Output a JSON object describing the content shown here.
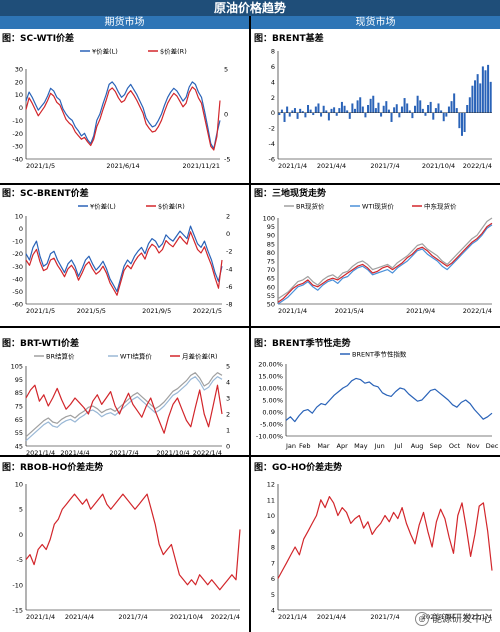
{
  "header": {
    "title": "原油价格趋势",
    "left_section": "期货市场",
    "right_section": "现货市场"
  },
  "watermark": "能源研发中心",
  "colors": {
    "blue": "#2a63b8",
    "red": "#d2262b",
    "gray": "#a0a0a0",
    "lightblue": "#7fa7cf"
  },
  "chart_data": [
    {
      "id": "sc-wti",
      "title": "图：SC-WTI价差",
      "type": "line",
      "legend": [
        "¥价差(L)",
        "$价差(R)"
      ],
      "ylim_left": [
        -40,
        30
      ],
      "yticks_left": [
        "30",
        "20",
        "10",
        "0",
        "-10",
        "-20",
        "-30",
        "-40"
      ],
      "ylim_right": [
        -5,
        5
      ],
      "yticks_right": [
        "5",
        "0",
        "-5"
      ],
      "xticks": [
        "2021/1/5",
        "2021/6/14",
        "2021/11/21"
      ],
      "series": [
        {
          "name": "¥价差(L)",
          "axis": "left",
          "color": "#2a63b8",
          "values": [
            5,
            12,
            8,
            3,
            -2,
            1,
            4,
            9,
            15,
            13,
            8,
            6,
            -1,
            -5,
            -8,
            -10,
            -15,
            -18,
            -22,
            -20,
            -25,
            -28,
            -22,
            -10,
            -5,
            3,
            10,
            18,
            20,
            17,
            12,
            8,
            10,
            15,
            18,
            14,
            10,
            5,
            0,
            -8,
            -12,
            -15,
            -14,
            -10,
            -5,
            2,
            8,
            12,
            15,
            13,
            9,
            5,
            8,
            16,
            20,
            18,
            12,
            8,
            -3,
            -15,
            -28,
            -32,
            -20,
            -10
          ]
        },
        {
          "name": "$价差(R)",
          "axis": "right",
          "color": "#d2262b",
          "values": [
            0.5,
            1.8,
            1.2,
            0.5,
            -0.2,
            0.3,
            0.8,
            1.5,
            2.3,
            2.0,
            1.3,
            1.0,
            0.2,
            -0.6,
            -1.0,
            -1.3,
            -2.0,
            -2.4,
            -2.8,
            -2.6,
            -3.1,
            -3.5,
            -2.8,
            -1.4,
            -0.6,
            0.5,
            1.5,
            2.6,
            2.9,
            2.5,
            1.8,
            1.3,
            1.5,
            2.2,
            2.6,
            2.1,
            1.5,
            0.8,
            0.1,
            -1.1,
            -1.6,
            -2.0,
            -1.9,
            -1.4,
            -0.7,
            0.3,
            1.2,
            1.8,
            2.3,
            2.0,
            1.4,
            0.8,
            1.2,
            2.4,
            3.0,
            2.7,
            1.8,
            1.2,
            -0.4,
            -2.0,
            -3.6,
            -4.0,
            -2.5,
            1.5
          ]
        }
      ]
    },
    {
      "id": "brent-basis",
      "title": "图：BRENT基差",
      "type": "bar",
      "ylim": [
        -6,
        8
      ],
      "yticks": [
        "8",
        "6",
        "4",
        "2",
        "0",
        "-2",
        "-4",
        "-6"
      ],
      "xticks": [
        "2021/1/4",
        "2021/4/4",
        "2021/7/4",
        "2021/10/4",
        "2022/1/4"
      ],
      "series": [
        {
          "name": "",
          "color": "#2a63b8",
          "values": [
            -0.3,
            0.4,
            -1.2,
            0.8,
            -0.5,
            0.3,
            0.6,
            -0.8,
            0.5,
            0.2,
            -0.6,
            1.0,
            0.4,
            -0.3,
            0.8,
            1.2,
            -0.5,
            0.9,
            0.3,
            -1.0,
            0.5,
            0.7,
            -0.4,
            0.6,
            1.4,
            0.9,
            0.3,
            -0.8,
            1.2,
            0.5,
            1.6,
            2.0,
            0.8,
            -0.6,
            1.0,
            1.8,
            2.2,
            0.6,
            1.3,
            -0.5,
            0.9,
            1.5,
            0.4,
            -1.2,
            0.7,
            1.1,
            -0.6,
            0.8,
            1.9,
            1.2,
            0.3,
            -0.7,
            0.9,
            2.2,
            1.6,
            0.5,
            -0.4,
            1.0,
            1.4,
            -0.9,
            0.6,
            1.2,
            0.3,
            -1.1,
            -0.5,
            0.8,
            1.5,
            2.5,
            0.6,
            -2.0,
            -3.0,
            -2.5,
            1.0,
            2.0,
            3.5,
            4.2,
            5.0,
            3.8,
            6.0,
            5.5,
            6.2,
            4.0
          ]
        }
      ]
    },
    {
      "id": "sc-brent",
      "title": "图：SC-BRENT价差",
      "type": "line",
      "legend": [
        "¥价差(L)",
        "$价差(R)"
      ],
      "ylim_left": [
        -60,
        10
      ],
      "yticks_left": [
        "10",
        "0",
        "-10",
        "-20",
        "-30",
        "-40",
        "-50",
        "-60"
      ],
      "ylim_right": [
        -8,
        2
      ],
      "yticks_right": [
        "2",
        "0",
        "-2",
        "-4",
        "-6",
        "-8"
      ],
      "xticks": [
        "2021/1/5",
        "2021/5/5",
        "2021/9/5",
        "2022/1/5"
      ],
      "series": [
        {
          "name": "¥价差(L)",
          "axis": "left",
          "color": "#2a63b8",
          "values": [
            -20,
            -25,
            -15,
            -10,
            -22,
            -30,
            -28,
            -20,
            -18,
            -25,
            -30,
            -35,
            -28,
            -25,
            -30,
            -38,
            -32,
            -25,
            -22,
            -28,
            -33,
            -30,
            -26,
            -32,
            -40,
            -45,
            -50,
            -40,
            -30,
            -25,
            -28,
            -22,
            -18,
            -15,
            -20,
            -12,
            -8,
            -10,
            -15,
            -12,
            -5,
            -8,
            -10,
            -6,
            -2,
            -5,
            -8,
            2,
            -5,
            -12,
            -15,
            -10,
            -18,
            -25,
            -35,
            -42,
            -30
          ]
        },
        {
          "name": "$价差(R)",
          "axis": "right",
          "color": "#d2262b",
          "values": [
            -3.0,
            -3.6,
            -2.4,
            -1.8,
            -3.2,
            -4.2,
            -4.0,
            -3.0,
            -2.8,
            -3.6,
            -4.2,
            -4.9,
            -4.0,
            -3.6,
            -4.2,
            -5.3,
            -4.5,
            -3.6,
            -3.2,
            -4.0,
            -4.6,
            -4.3,
            -3.7,
            -4.5,
            -5.6,
            -6.3,
            -7.0,
            -5.6,
            -4.2,
            -3.6,
            -4.0,
            -3.2,
            -2.6,
            -2.2,
            -2.9,
            -1.8,
            -1.2,
            -1.5,
            -2.2,
            -1.8,
            -0.8,
            -1.2,
            -1.5,
            -0.9,
            -0.3,
            -0.8,
            -1.2,
            0.2,
            -0.8,
            -1.8,
            -2.2,
            -1.5,
            -2.6,
            -3.6,
            -5.0,
            -6.2,
            -3.0
          ]
        }
      ]
    },
    {
      "id": "three-spot",
      "title": "图：三地现货走势",
      "type": "line",
      "legend": [
        "BR现货价",
        "WTI现货价",
        "中东现货价"
      ],
      "ylim": [
        50,
        100
      ],
      "yticks": [
        "100",
        "95",
        "90",
        "85",
        "80",
        "75",
        "70",
        "65",
        "60",
        "55",
        "50"
      ],
      "xticks": [
        "2021/1/4",
        "2021/5/4",
        "2021/9/4",
        "2022/1/4"
      ],
      "series": [
        {
          "name": "BR现货价",
          "color": "#a0a0a0",
          "values": [
            53,
            55,
            57,
            60,
            63,
            64,
            66,
            63,
            61,
            64,
            66,
            67,
            65,
            68,
            69,
            72,
            74,
            75,
            73,
            70,
            71,
            72,
            73,
            71,
            74,
            76,
            78,
            81,
            84,
            85,
            82,
            80,
            78,
            75,
            73,
            76,
            79,
            82,
            85,
            88,
            90,
            94,
            98,
            100
          ]
        },
        {
          "name": "WTI现货价",
          "color": "#4a90d9",
          "values": [
            50,
            52,
            54,
            57,
            60,
            61,
            63,
            60,
            58,
            61,
            63,
            64,
            62,
            65,
            66,
            69,
            71,
            72,
            70,
            67,
            68,
            69,
            70,
            68,
            71,
            73,
            75,
            78,
            81,
            82,
            79,
            77,
            75,
            72,
            70,
            73,
            76,
            79,
            82,
            85,
            87,
            90,
            94,
            96
          ]
        },
        {
          "name": "中东现货价",
          "color": "#d2262b",
          "values": [
            51,
            53,
            56,
            59,
            61,
            62,
            64,
            61,
            60,
            62,
            64,
            65,
            64,
            66,
            68,
            70,
            72,
            73,
            71,
            68,
            69,
            71,
            72,
            70,
            72,
            74,
            77,
            79,
            82,
            83,
            81,
            78,
            76,
            74,
            72,
            74,
            77,
            80,
            83,
            86,
            88,
            91,
            95,
            97
          ]
        }
      ]
    },
    {
      "id": "brt-wti",
      "title": "图：BRT-WTI价差",
      "type": "line",
      "legend": [
        "BR结算价",
        "WTI结算价",
        "月差价差(R)"
      ],
      "ylim_left": [
        45,
        105
      ],
      "yticks_left": [
        "105",
        "95",
        "85",
        "75",
        "65",
        "55",
        "45"
      ],
      "ylim_right": [
        0,
        5
      ],
      "yticks_right": [
        "5",
        "4",
        "3",
        "2",
        "1",
        "0"
      ],
      "xticks": [
        "2021/1/4",
        "2021/4/4",
        "2021/7/4",
        "2021/10/4",
        "2022/1/4"
      ],
      "series": [
        {
          "name": "BR结算价",
          "axis": "left",
          "color": "#a0a0a0",
          "values": [
            52,
            55,
            58,
            61,
            64,
            66,
            63,
            62,
            65,
            67,
            68,
            66,
            69,
            71,
            74,
            75,
            73,
            70,
            72,
            73,
            71,
            74,
            77,
            80,
            83,
            85,
            82,
            79,
            76,
            73,
            75,
            78,
            82,
            86,
            88,
            91,
            94,
            98,
            100,
            96,
            90,
            92,
            97,
            100,
            98
          ]
        },
        {
          "name": "WTI结算价",
          "axis": "left",
          "color": "#9ab8d6",
          "values": [
            49,
            52,
            55,
            58,
            61,
            63,
            60,
            59,
            62,
            64,
            65,
            63,
            66,
            68,
            71,
            72,
            70,
            67,
            69,
            70,
            68,
            71,
            74,
            77,
            80,
            82,
            79,
            76,
            73,
            70,
            72,
            75,
            79,
            83,
            85,
            88,
            91,
            95,
            97,
            93,
            87,
            89,
            94,
            97,
            95
          ]
        },
        {
          "name": "月差价差(R)",
          "axis": "right",
          "color": "#d2262b",
          "values": [
            3.0,
            3.5,
            3.8,
            2.8,
            3.2,
            2.5,
            3.0,
            3.6,
            2.9,
            2.3,
            2.6,
            3.0,
            2.7,
            2.4,
            2.0,
            2.8,
            3.2,
            2.6,
            3.0,
            3.4,
            2.5,
            2.0,
            2.7,
            3.3,
            2.6,
            2.2,
            1.8,
            2.5,
            3.0,
            2.2,
            1.5,
            0.8,
            1.8,
            2.6,
            3.0,
            2.3,
            1.6,
            1.2,
            2.4,
            3.5,
            2.0,
            1.2,
            2.5,
            3.8,
            2.0
          ]
        }
      ]
    },
    {
      "id": "brent-season",
      "title": "图：BRENT季节性走势",
      "type": "line",
      "legend": [
        "BRENT季节性指数"
      ],
      "ylim": [
        -10,
        20
      ],
      "yticks": [
        "20.00%",
        "15.00%",
        "10.00%",
        "5.00%",
        "0.00%",
        "-5.00%",
        "-10.00%"
      ],
      "xticks": [
        "Jan",
        "Feb",
        "Mar",
        "Apr",
        "May",
        "Jun",
        "Jul",
        "Aug",
        "Sep",
        "Oct",
        "Nov",
        "Dec"
      ],
      "series": [
        {
          "name": "BRENT季节性指数",
          "color": "#2a63b8",
          "values": [
            -3.5,
            -2.0,
            -4.0,
            -1.5,
            0.5,
            1.0,
            -0.5,
            2.0,
            3.5,
            3.0,
            5.0,
            7.0,
            8.5,
            10.0,
            11.0,
            13.0,
            14.0,
            13.5,
            12.0,
            12.5,
            11.0,
            10.5,
            8.0,
            7.0,
            6.5,
            8.5,
            10.0,
            9.5,
            7.5,
            6.0,
            4.5,
            5.0,
            7.0,
            9.0,
            9.5,
            8.0,
            6.5,
            5.0,
            3.0,
            2.0,
            4.0,
            5.0,
            3.5,
            1.0,
            -1.0,
            -3.0,
            -2.0,
            -0.5
          ]
        }
      ]
    },
    {
      "id": "rbob-ho",
      "title": "图：RBOB-HO价差走势",
      "type": "line",
      "ylim": [
        -15,
        10
      ],
      "yticks": [
        "10",
        "5",
        "0",
        "-5",
        "-10",
        "-15"
      ],
      "xticks": [
        "2021/1/4",
        "2021/4/4",
        "2021/7/4",
        "2021/10/4",
        "2022/1/4"
      ],
      "series": [
        {
          "name": "",
          "color": "#d2262b",
          "values": [
            -5,
            -4,
            -6,
            -3,
            -2,
            -3,
            -1,
            2,
            3,
            5,
            6,
            7,
            8,
            7,
            6,
            7,
            5,
            6,
            7,
            8,
            6,
            5,
            6,
            7,
            8,
            7,
            6,
            5,
            6,
            7,
            8,
            5,
            2,
            -2,
            -4,
            -3,
            -2,
            -5,
            -8,
            -9,
            -10,
            -9,
            -10,
            -8,
            -9,
            -10,
            -9,
            -10,
            -11,
            -10,
            -9,
            -8,
            -9,
            1
          ]
        }
      ]
    },
    {
      "id": "go-ho",
      "title": "图：GO-HO价差走势",
      "type": "line",
      "ylim": [
        4,
        12
      ],
      "yticks": [
        "12",
        "11",
        "10",
        "9",
        "8",
        "7",
        "6",
        "5",
        "4"
      ],
      "xticks": [
        "2021/1/4",
        "2021/4/4",
        "2021/7/4",
        "2021/10/4",
        "2022/1/4"
      ],
      "series": [
        {
          "name": "",
          "color": "#d2262b",
          "values": [
            6,
            6.5,
            7,
            7.5,
            8,
            7.5,
            8.5,
            9,
            9.5,
            10,
            11,
            10.5,
            11.2,
            10.8,
            10,
            10.5,
            10.2,
            9.5,
            9.8,
            10,
            9.2,
            9.6,
            8.8,
            9.2,
            9.5,
            10,
            9.6,
            10.2,
            9.8,
            10.5,
            9.5,
            8.8,
            8.2,
            9.4,
            10.2,
            9,
            8,
            9.6,
            10.4,
            9.8,
            8.6,
            7.6,
            10,
            10.8,
            9.2,
            7.4,
            8.8,
            10.6,
            10.8,
            9,
            6.5
          ]
        }
      ]
    }
  ]
}
